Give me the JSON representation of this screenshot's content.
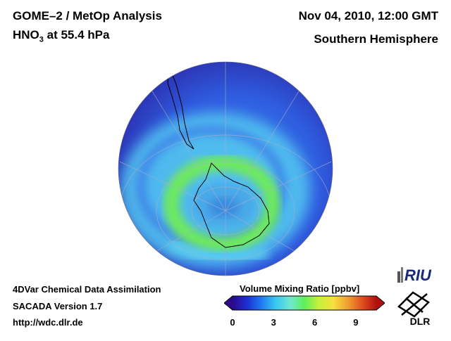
{
  "header": {
    "title_line1": "GOME–2 / MetOp Analysis",
    "title_species": "HNO",
    "title_subscript": "3",
    "title_suffix": " at 55.4 hPa",
    "date": "Nov 04, 2010, 12:00 GMT",
    "region": "Southern Hemisphere"
  },
  "footer": {
    "line1": "4DVar Chemical Data Assimilation",
    "line2": "SACADA Version 1.7",
    "line3": "http://wdc.dlr.de"
  },
  "colorbar": {
    "title": "Volume Mixing Ratio [ppbv]",
    "ticks": [
      "0",
      "3",
      "6",
      "9"
    ],
    "tick_values": [
      0,
      3,
      6,
      9
    ],
    "min": 0,
    "max": 10.5,
    "colors": [
      "#2a0a8a",
      "#1c2fd0",
      "#1e7bf0",
      "#38c8f0",
      "#6fe8d0",
      "#5ff05a",
      "#c8f03a",
      "#f5e040",
      "#f0a030",
      "#e05020",
      "#b01010"
    ]
  },
  "logos": {
    "riu_text": "RIU",
    "dlr_text": "DLR"
  },
  "map_colors": {
    "background_low": "#2a1a9a",
    "mid": "#2f6ae8",
    "light": "#58d0f0",
    "ring": "#6ee860",
    "ring_peak": "#7cf05a",
    "core": "#4aa8e8",
    "coastline": "#000000",
    "grid": "#9aa0b8"
  }
}
